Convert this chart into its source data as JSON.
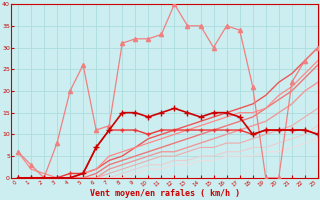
{
  "xlabel": "Vent moyen/en rafales ( km/h )",
  "xlim": [
    -0.5,
    23
  ],
  "ylim": [
    0,
    40
  ],
  "xticks": [
    0,
    1,
    2,
    3,
    4,
    5,
    6,
    7,
    8,
    9,
    10,
    11,
    12,
    13,
    14,
    15,
    16,
    17,
    18,
    19,
    20,
    21,
    22,
    23
  ],
  "yticks": [
    0,
    5,
    10,
    15,
    20,
    25,
    30,
    35,
    40
  ],
  "bg_color": "#cceef0",
  "grid_color": "#aadddd",
  "lines": [
    {
      "x": [
        0,
        1,
        2,
        3,
        4,
        5,
        6,
        7,
        8,
        9,
        10,
        11,
        12,
        13,
        14,
        15,
        16,
        17,
        18,
        19,
        20,
        21,
        22,
        23
      ],
      "y": [
        0,
        0,
        0,
        0,
        0,
        1,
        7,
        11,
        15,
        15,
        14,
        15,
        16,
        15,
        14,
        15,
        15,
        14,
        10,
        11,
        11,
        11,
        11,
        10
      ],
      "color": "#cc0000",
      "lw": 1.2,
      "marker": "+",
      "ms": 4,
      "zorder": 7
    },
    {
      "x": [
        0,
        1,
        2,
        3,
        4,
        5,
        6,
        7,
        8,
        9,
        10,
        11,
        12,
        13,
        14,
        15,
        16,
        17,
        18,
        19,
        20,
        21,
        22,
        23
      ],
      "y": [
        0,
        0,
        0,
        0,
        1,
        1,
        7,
        11,
        11,
        11,
        10,
        11,
        11,
        11,
        11,
        11,
        11,
        11,
        10,
        11,
        11,
        11,
        11,
        10
      ],
      "color": "#ee3333",
      "lw": 1.0,
      "marker": "+",
      "ms": 3,
      "zorder": 6
    },
    {
      "x": [
        0,
        1,
        2,
        3,
        4,
        5,
        6,
        7,
        8,
        9,
        10,
        11,
        12,
        13,
        14,
        15,
        16,
        17,
        18,
        19,
        20,
        21,
        22,
        23
      ],
      "y": [
        6,
        3,
        0,
        8,
        20,
        26,
        11,
        12,
        31,
        32,
        32,
        33,
        40,
        35,
        35,
        30,
        35,
        34,
        21,
        0,
        0,
        22,
        27,
        30
      ],
      "color": "#f08080",
      "lw": 0.9,
      "marker": "^",
      "ms": 3,
      "zorder": 5
    },
    {
      "x": [
        0,
        1,
        2,
        3,
        4,
        5,
        6,
        7,
        8,
        9,
        10,
        11,
        12,
        13,
        14,
        15,
        16,
        17,
        18,
        19,
        20,
        21,
        22,
        23
      ],
      "y": [
        0,
        0,
        0,
        0,
        0,
        1,
        2,
        4,
        5,
        7,
        9,
        10,
        11,
        12,
        13,
        14,
        15,
        16,
        17,
        19,
        22,
        24,
        27,
        30
      ],
      "color": "#ee5555",
      "lw": 1.0,
      "marker": null,
      "ms": 0,
      "zorder": 4
    },
    {
      "x": [
        0,
        1,
        2,
        3,
        4,
        5,
        6,
        7,
        8,
        9,
        10,
        11,
        12,
        13,
        14,
        15,
        16,
        17,
        18,
        19,
        20,
        21,
        22,
        23
      ],
      "y": [
        0,
        0,
        0,
        0,
        0,
        0,
        1,
        3,
        4,
        5,
        6,
        7,
        8,
        9,
        10,
        11,
        12,
        13,
        14,
        16,
        18,
        20,
        23,
        26
      ],
      "color": "#ee7777",
      "lw": 1.0,
      "marker": null,
      "ms": 0,
      "zorder": 4
    },
    {
      "x": [
        0,
        1,
        2,
        3,
        4,
        5,
        6,
        7,
        8,
        9,
        10,
        11,
        12,
        13,
        14,
        15,
        16,
        17,
        18,
        19,
        20,
        21,
        22,
        23
      ],
      "y": [
        0,
        0,
        0,
        0,
        0,
        0,
        0,
        2,
        3,
        4,
        5,
        6,
        6,
        7,
        8,
        9,
        10,
        11,
        12,
        13,
        15,
        17,
        20,
        22
      ],
      "color": "#ee9999",
      "lw": 1.0,
      "marker": null,
      "ms": 0,
      "zorder": 3
    },
    {
      "x": [
        0,
        1,
        2,
        3,
        4,
        5,
        6,
        7,
        8,
        9,
        10,
        11,
        12,
        13,
        14,
        15,
        16,
        17,
        18,
        19,
        20,
        21,
        22,
        23
      ],
      "y": [
        0,
        0,
        0,
        0,
        0,
        0,
        0,
        1,
        2,
        3,
        4,
        5,
        5,
        6,
        7,
        7,
        8,
        8,
        9,
        10,
        11,
        12,
        14,
        16
      ],
      "color": "#eeaaaa",
      "lw": 0.8,
      "marker": null,
      "ms": 0,
      "zorder": 3
    },
    {
      "x": [
        0,
        1,
        2,
        3,
        4,
        5,
        6,
        7,
        8,
        9,
        10,
        11,
        12,
        13,
        14,
        15,
        16,
        17,
        18,
        19,
        20,
        21,
        22,
        23
      ],
      "y": [
        0,
        0,
        0,
        0,
        0,
        0,
        0,
        0,
        1,
        2,
        3,
        3,
        4,
        4,
        5,
        5,
        6,
        6,
        7,
        7,
        8,
        9,
        10,
        12
      ],
      "color": "#eecccc",
      "lw": 0.8,
      "marker": null,
      "ms": 0,
      "zorder": 2
    },
    {
      "x": [
        0,
        1,
        2,
        3,
        4,
        5,
        6,
        7,
        8,
        9,
        10,
        11,
        12,
        13,
        14,
        15,
        16,
        17,
        18,
        19,
        20,
        21,
        22,
        23
      ],
      "y": [
        0,
        0,
        0,
        0,
        0,
        0,
        0,
        0,
        0,
        1,
        2,
        2,
        3,
        3,
        4,
        4,
        5,
        5,
        5,
        6,
        6,
        7,
        8,
        9
      ],
      "color": "#eedddd",
      "lw": 0.8,
      "marker": null,
      "ms": 0,
      "zorder": 2
    },
    {
      "x": [
        0,
        1,
        2,
        3,
        4,
        5,
        6,
        7,
        8,
        9,
        10,
        11,
        12,
        13,
        14,
        15,
        16,
        17,
        18,
        19,
        20,
        21,
        22,
        23
      ],
      "y": [
        6,
        2,
        1,
        0,
        0,
        1,
        2,
        5,
        6,
        7,
        8,
        9,
        10,
        11,
        12,
        13,
        14,
        15,
        15,
        16,
        19,
        21,
        24,
        27
      ],
      "color": "#ff8888",
      "lw": 0.9,
      "marker": null,
      "ms": 0,
      "zorder": 4
    }
  ]
}
